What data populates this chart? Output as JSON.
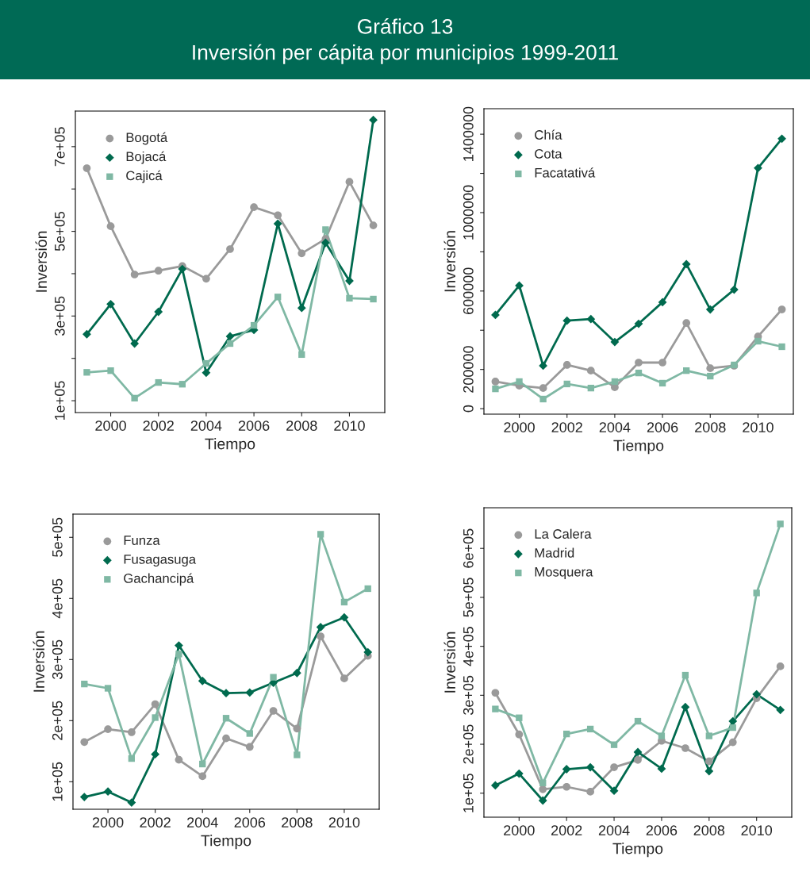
{
  "chart_data": [
    {
      "type": "line",
      "title": "Gráfico 13\nInversión per cápita por municipios 1999-2011",
      "xlabel": "Tiempo",
      "ylabel": "Inversión",
      "legend": "top left",
      "grid": false,
      "x": [
        1999,
        2000,
        2001,
        2002,
        2003,
        2004,
        2005,
        2006,
        2007,
        2008,
        2009,
        2010,
        2011
      ],
      "xlim": [
        1998.52,
        2011.48
      ],
      "xticks": [
        2000,
        2002,
        2004,
        2006,
        2008,
        2010
      ],
      "ylim": [
        72000,
        784000
      ],
      "yticks": [
        {
          "value": 100000,
          "label": "1e+05"
        },
        {
          "value": 200000,
          "label": null
        },
        {
          "value": 300000,
          "label": "3e+05"
        },
        {
          "value": 400000,
          "label": null
        },
        {
          "value": 500000,
          "label": "5e+05"
        },
        {
          "value": 600000,
          "label": null
        },
        {
          "value": 700000,
          "label": "7e+05"
        }
      ],
      "series": [
        {
          "name": "Bogotá",
          "color": "#9a9a9a",
          "marker": "circle",
          "values": [
            649000,
            512000,
            398000,
            407000,
            418000,
            388000,
            458000,
            557000,
            538000,
            448000,
            482000,
            617000,
            514000
          ]
        },
        {
          "name": "Bojacá",
          "color": "#006a4e",
          "marker": "diamond",
          "values": [
            257000,
            328000,
            235000,
            310000,
            411000,
            166000,
            252000,
            267000,
            518000,
            319000,
            473000,
            383000,
            763000
          ]
        },
        {
          "name": "Cajicá",
          "color": "#7fb8a4",
          "marker": "square",
          "values": [
            167000,
            171000,
            106000,
            143000,
            139000,
            188000,
            235000,
            278000,
            345000,
            209000,
            504000,
            342000,
            340000
          ]
        }
      ]
    },
    {
      "type": "line",
      "xlabel": "Tiempo",
      "ylabel": "Inversión",
      "legend": "top left",
      "grid": false,
      "x": [
        1999,
        2000,
        2001,
        2002,
        2003,
        2004,
        2005,
        2006,
        2007,
        2008,
        2009,
        2010,
        2011
      ],
      "xlim": [
        1998.52,
        2011.48
      ],
      "xticks": [
        2000,
        2002,
        2004,
        2006,
        2008,
        2010
      ],
      "ylim": [
        -28000,
        1530000
      ],
      "yticks": [
        0,
        200000,
        {
          "value": 400000,
          "label": null
        },
        600000,
        {
          "value": 800000,
          "label": null
        },
        1000000,
        {
          "value": 1200000,
          "label": null
        },
        1400000
      ],
      "series": [
        {
          "name": "Chía",
          "color": "#9a9a9a",
          "marker": "circle",
          "values": [
            138000,
            117000,
            105000,
            223000,
            194000,
            109000,
            235000,
            235000,
            437000,
            206000,
            219000,
            368000,
            506000
          ]
        },
        {
          "name": "Cota",
          "color": "#006a4e",
          "marker": "diamond",
          "values": [
            478000,
            628000,
            219000,
            449000,
            457000,
            340000,
            433000,
            543000,
            737000,
            506000,
            607000,
            1227000,
            1377000
          ]
        },
        {
          "name": "Facatativá",
          "color": "#7fb8a4",
          "marker": "square",
          "values": [
            101000,
            138000,
            49000,
            126000,
            105000,
            138000,
            182000,
            130000,
            194000,
            166000,
            223000,
            344000,
            316000
          ]
        }
      ]
    },
    {
      "type": "line",
      "xlabel": "Tiempo",
      "ylabel": "Inversión",
      "legend": "top left",
      "grid": false,
      "x": [
        1999,
        2000,
        2001,
        2002,
        2003,
        2004,
        2005,
        2006,
        2007,
        2008,
        2009,
        2010,
        2011
      ],
      "xlim": [
        1998.52,
        2011.48
      ],
      "xticks": [
        2000,
        2002,
        2004,
        2006,
        2008,
        2010
      ],
      "ylim": [
        55000,
        538000
      ],
      "yticks": [
        {
          "value": 100000,
          "label": "1e+05"
        },
        {
          "value": 200000,
          "label": "2e+05"
        },
        {
          "value": 300000,
          "label": "3e+05"
        },
        {
          "value": 400000,
          "label": "4e+05"
        },
        {
          "value": 500000,
          "label": "5e+05"
        }
      ],
      "series": [
        {
          "name": "Funza",
          "color": "#9a9a9a",
          "marker": "circle",
          "values": [
            165000,
            186000,
            181000,
            227000,
            136000,
            109000,
            171000,
            157000,
            216000,
            187000,
            338000,
            269000,
            306000
          ]
        },
        {
          "name": "Fusagasuga",
          "color": "#006a4e",
          "marker": "diamond",
          "values": [
            75000,
            84000,
            66000,
            145000,
            323000,
            265000,
            245000,
            246000,
            262000,
            278000,
            353000,
            369000,
            312000
          ]
        },
        {
          "name": "Gachancipá",
          "color": "#7fb8a4",
          "marker": "square",
          "values": [
            260000,
            253000,
            138000,
            205000,
            309000,
            129000,
            204000,
            179000,
            271000,
            144000,
            505000,
            394000,
            416000
          ]
        }
      ]
    },
    {
      "type": "line",
      "xlabel": "Tiempo",
      "ylabel": "Inversión",
      "legend": "top left",
      "grid": false,
      "x": [
        1999,
        2000,
        2001,
        2002,
        2003,
        2004,
        2005,
        2006,
        2007,
        2008,
        2009,
        2010,
        2011
      ],
      "xlim": [
        1998.52,
        2011.48
      ],
      "xticks": [
        2000,
        2002,
        2004,
        2006,
        2008,
        2010
      ],
      "ylim": [
        51000,
        683000
      ],
      "yticks": [
        {
          "value": 100000,
          "label": "1e+05"
        },
        {
          "value": 200000,
          "label": "2e+05"
        },
        {
          "value": 300000,
          "label": "3e+05"
        },
        {
          "value": 400000,
          "label": "4e+05"
        },
        {
          "value": 500000,
          "label": "5e+05"
        },
        {
          "value": 600000,
          "label": "6e+05"
        }
      ],
      "series": [
        {
          "name": "La Calera",
          "color": "#9a9a9a",
          "marker": "circle",
          "values": [
            305000,
            220000,
            108000,
            113000,
            103000,
            153000,
            168000,
            207000,
            192000,
            165000,
            204000,
            294000,
            359000
          ]
        },
        {
          "name": "Madrid",
          "color": "#006a4e",
          "marker": "diamond",
          "values": [
            116000,
            140000,
            85000,
            149000,
            153000,
            105000,
            184000,
            150000,
            276000,
            145000,
            247000,
            302000,
            270000
          ]
        },
        {
          "name": "Mosquera",
          "color": "#7fb8a4",
          "marker": "square",
          "values": [
            272000,
            254000,
            121000,
            221000,
            231000,
            199000,
            247000,
            217000,
            341000,
            217000,
            234000,
            509000,
            650000
          ]
        }
      ]
    }
  ]
}
